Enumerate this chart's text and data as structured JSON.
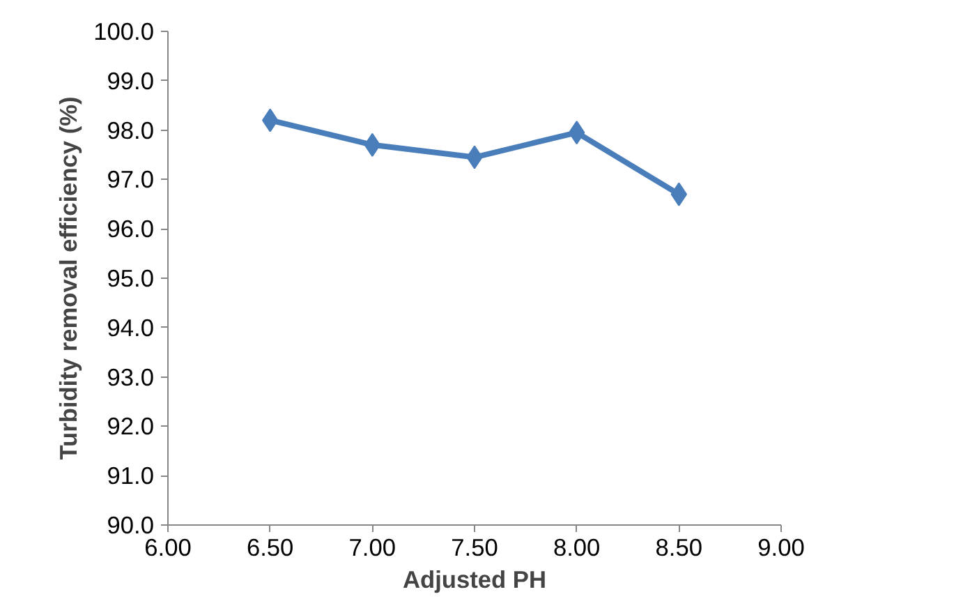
{
  "chart_data": {
    "type": "line",
    "xlabel": "Adjusted PH",
    "ylabel": "Turbidity removal efficiency (%)",
    "x": [
      6.5,
      7.0,
      7.5,
      8.0,
      8.5
    ],
    "series": [
      {
        "color": "#4a7ebb",
        "values": [
          98.2,
          97.7,
          97.45,
          97.95,
          96.7
        ]
      }
    ],
    "xlim": [
      6.0,
      9.0
    ],
    "ylim": [
      90.0,
      100.0
    ],
    "xticks": [
      {
        "value": 6,
        "label": "6.00"
      },
      {
        "value": 6.5,
        "label": "6.50"
      },
      {
        "value": 7,
        "label": "7.00"
      },
      {
        "value": 7.5,
        "label": "7.50"
      },
      {
        "value": 8,
        "label": "8.00"
      },
      {
        "value": 8.5,
        "label": "8.50"
      },
      {
        "value": 9,
        "label": "9.00"
      }
    ],
    "yticks": [
      {
        "value": 90,
        "label": "90.0"
      },
      {
        "value": 91,
        "label": "91.0"
      },
      {
        "value": 92,
        "label": "92.0"
      },
      {
        "value": 93,
        "label": "93.0"
      },
      {
        "value": 94,
        "label": "94.0"
      },
      {
        "value": 95,
        "label": "95.0"
      },
      {
        "value": 96,
        "label": "96.0"
      },
      {
        "value": 97,
        "label": "97.0"
      },
      {
        "value": 98,
        "label": "98.0"
      },
      {
        "value": 99,
        "label": "99.0"
      },
      {
        "value": 100,
        "label": "100.0"
      }
    ],
    "grid": false,
    "marker": "diamond",
    "line_style": "solid"
  }
}
